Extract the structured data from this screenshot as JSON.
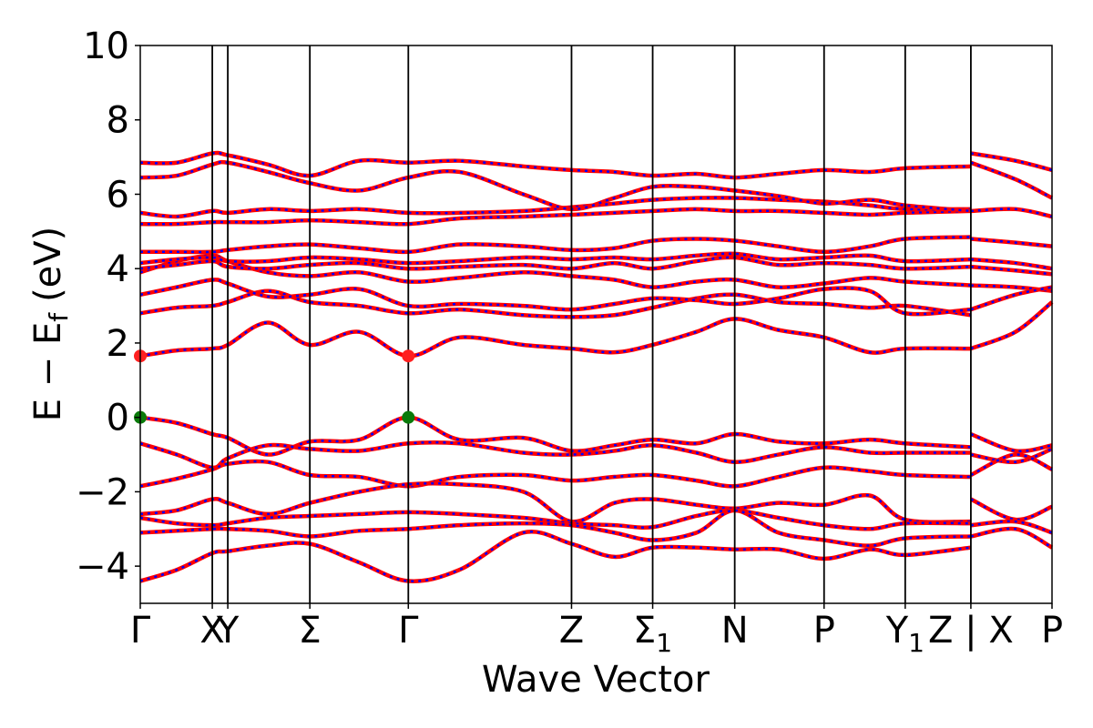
{
  "chart_data": {
    "type": "line",
    "xlabel": "Wave Vector",
    "ylabel": "E − E",
    "ylabel_sub": "f",
    "ylabel_units": "(eV)",
    "ylim": [
      -5,
      10
    ],
    "yticks": [
      {
        "value": -4,
        "label": "−4"
      },
      {
        "value": -2,
        "label": "−2"
      },
      {
        "value": 0,
        "label": "0"
      },
      {
        "value": 2,
        "label": "2"
      },
      {
        "value": 4,
        "label": "4"
      },
      {
        "value": 6,
        "label": "6"
      },
      {
        "value": 8,
        "label": "8"
      },
      {
        "value": 10,
        "label": "10"
      }
    ],
    "xlim": [
      0,
      1000
    ],
    "high_symmetry_points": [
      {
        "k": 0,
        "label": "Γ",
        "sub": ""
      },
      {
        "k": 79,
        "label": "X",
        "sub": ""
      },
      {
        "k": 96,
        "label": "Y",
        "sub": ""
      },
      {
        "k": 186,
        "label": "Σ",
        "sub": ""
      },
      {
        "k": 294,
        "label": "Γ",
        "sub": ""
      },
      {
        "k": 473,
        "label": "Z",
        "sub": ""
      },
      {
        "k": 562,
        "label": "Σ",
        "sub": "1"
      },
      {
        "k": 652,
        "label": "N",
        "sub": ""
      },
      {
        "k": 750,
        "label": "P",
        "sub": ""
      },
      {
        "k": 839,
        "label": "Y",
        "sub": "1"
      },
      {
        "k": 911,
        "label": "Z | X",
        "sub": ""
      },
      {
        "k": 1000,
        "label": "P",
        "sub": ""
      }
    ],
    "band_styles": {
      "solid_color": "#ff0000",
      "dash_color": "#0000ff"
    },
    "markers": [
      {
        "k": 0,
        "e": 1.65,
        "color": "#ff2020"
      },
      {
        "k": 294,
        "e": 1.65,
        "color": "#ff2020"
      },
      {
        "k": 0,
        "e": 0.0,
        "color": "#0a7a0a"
      },
      {
        "k": 294,
        "e": 0.0,
        "color": "#0a7a0a"
      }
    ],
    "series": [
      {
        "k": [
          0,
          40,
          79,
          96,
          140,
          186,
          240,
          294,
          350,
          420,
          473,
          520,
          562,
          610,
          652,
          700,
          750,
          800,
          839,
          911
        ],
        "e": [
          1.65,
          1.8,
          1.85,
          1.95,
          2.55,
          1.95,
          2.3,
          1.65,
          2.15,
          1.95,
          1.85,
          1.75,
          1.95,
          2.3,
          2.65,
          2.35,
          2.15,
          1.75,
          1.85,
          1.85
        ]
      },
      {
        "k": [
          911,
          960,
          1000
        ],
        "e": [
          1.85,
          2.3,
          3.1
        ]
      },
      {
        "k": [
          0,
          40,
          79,
          96,
          140,
          186,
          240,
          294,
          350,
          420,
          473,
          520,
          562,
          610,
          652,
          700,
          750,
          800,
          839,
          911
        ],
        "e": [
          2.8,
          2.95,
          3.0,
          3.1,
          3.4,
          3.1,
          3.0,
          2.8,
          2.9,
          2.75,
          2.7,
          2.75,
          2.95,
          3.2,
          3.3,
          3.1,
          3.05,
          2.95,
          3.0,
          2.75
        ]
      },
      {
        "k": [
          0,
          40,
          79,
          96,
          140,
          186,
          240,
          294,
          350,
          420,
          473,
          520,
          562,
          610,
          652,
          700,
          750,
          800,
          839,
          911
        ],
        "e": [
          3.3,
          3.5,
          3.7,
          3.6,
          3.25,
          3.3,
          3.45,
          3.0,
          3.05,
          3.0,
          2.9,
          3.05,
          3.2,
          3.15,
          3.05,
          3.2,
          3.45,
          3.4,
          2.8,
          2.9
        ]
      },
      {
        "k": [
          0,
          40,
          79,
          96,
          140,
          186,
          240,
          294,
          350,
          420,
          473,
          520,
          562,
          610,
          652,
          700,
          750,
          800,
          839,
          911
        ],
        "e": [
          3.9,
          4.2,
          4.35,
          4.2,
          3.9,
          3.8,
          3.9,
          3.65,
          3.75,
          3.9,
          3.8,
          3.7,
          3.5,
          3.65,
          3.7,
          3.5,
          3.6,
          3.75,
          3.65,
          3.55
        ]
      },
      {
        "k": [
          0,
          40,
          79,
          96,
          140,
          186,
          240,
          294,
          350,
          420,
          473,
          520,
          562,
          610,
          652,
          700,
          750,
          800,
          839,
          911
        ],
        "e": [
          4.0,
          4.1,
          4.2,
          4.05,
          4.0,
          4.1,
          4.15,
          4.0,
          4.05,
          4.1,
          4.0,
          4.15,
          4.0,
          4.2,
          4.3,
          4.1,
          4.15,
          4.1,
          4.0,
          4.05
        ]
      },
      {
        "k": [
          0,
          40,
          79,
          96,
          140,
          186,
          240,
          294,
          350,
          420,
          473,
          520,
          562,
          610,
          652,
          700,
          750,
          800,
          839,
          911
        ],
        "e": [
          4.15,
          4.25,
          4.3,
          4.2,
          4.2,
          4.3,
          4.25,
          4.15,
          4.2,
          4.3,
          4.25,
          4.3,
          4.25,
          4.35,
          4.4,
          4.25,
          4.3,
          4.35,
          4.2,
          4.25
        ]
      },
      {
        "k": [
          0,
          40,
          79,
          96,
          140,
          186,
          240,
          294,
          350,
          420,
          473,
          520,
          562,
          610,
          652,
          700,
          750,
          800,
          839,
          911
        ],
        "e": [
          4.45,
          4.45,
          4.45,
          4.5,
          4.6,
          4.65,
          4.55,
          4.45,
          4.65,
          4.6,
          4.5,
          4.55,
          4.75,
          4.8,
          4.75,
          4.6,
          4.45,
          4.6,
          4.8,
          4.85
        ]
      },
      {
        "k": [
          0,
          40,
          79,
          96,
          140,
          186,
          240,
          294,
          350,
          420,
          473,
          520,
          562,
          610,
          652,
          700,
          750,
          800,
          839,
          911
        ],
        "e": [
          5.2,
          5.2,
          5.25,
          5.25,
          5.25,
          5.3,
          5.25,
          5.2,
          5.35,
          5.4,
          5.45,
          5.5,
          5.55,
          5.6,
          5.55,
          5.55,
          5.5,
          5.45,
          5.5,
          5.55
        ]
      },
      {
        "k": [
          0,
          40,
          79,
          96,
          140,
          186,
          240,
          294,
          350,
          420,
          473,
          520,
          562,
          610,
          652,
          700,
          750,
          800,
          839,
          911
        ],
        "e": [
          5.5,
          5.4,
          5.55,
          5.5,
          5.6,
          5.55,
          5.6,
          5.5,
          5.5,
          5.55,
          5.65,
          5.75,
          5.85,
          5.9,
          5.9,
          5.85,
          5.8,
          5.7,
          5.6,
          5.6
        ]
      },
      {
        "k": [
          0,
          40,
          79,
          96,
          140,
          186,
          240,
          294,
          350,
          420,
          473,
          520,
          562,
          610,
          652,
          700,
          750,
          800,
          839,
          911
        ],
        "e": [
          6.45,
          6.5,
          6.8,
          6.85,
          6.6,
          6.3,
          6.1,
          6.45,
          6.6,
          6.0,
          5.6,
          5.9,
          6.2,
          6.2,
          6.1,
          5.95,
          5.75,
          5.85,
          5.7,
          5.55
        ]
      },
      {
        "k": [
          0,
          40,
          79,
          96,
          140,
          186,
          240,
          294,
          350,
          420,
          473,
          520,
          562,
          610,
          652,
          700,
          750,
          800,
          839,
          911
        ],
        "e": [
          6.85,
          6.85,
          7.1,
          7.05,
          6.8,
          6.5,
          6.9,
          6.85,
          6.9,
          6.75,
          6.65,
          6.6,
          6.5,
          6.55,
          6.45,
          6.55,
          6.65,
          6.6,
          6.7,
          6.75
        ]
      },
      {
        "k": [
          911,
          960,
          1000
        ],
        "e": [
          7.1,
          6.9,
          6.65
        ]
      },
      {
        "k": [
          911,
          960,
          1000
        ],
        "e": [
          6.85,
          6.4,
          5.9
        ]
      },
      {
        "k": [
          911,
          960,
          1000
        ],
        "e": [
          5.55,
          5.6,
          5.4
        ]
      },
      {
        "k": [
          911,
          960,
          1000
        ],
        "e": [
          4.8,
          4.7,
          4.6
        ]
      },
      {
        "k": [
          911,
          960,
          1000
        ],
        "e": [
          4.25,
          4.15,
          4.0
        ]
      },
      {
        "k": [
          911,
          960,
          1000
        ],
        "e": [
          4.05,
          3.95,
          3.85
        ]
      },
      {
        "k": [
          911,
          960,
          1000
        ],
        "e": [
          3.55,
          3.5,
          3.4
        ]
      },
      {
        "k": [
          911,
          960,
          1000
        ],
        "e": [
          2.9,
          3.3,
          3.5
        ]
      },
      {
        "k": [
          0,
          40,
          79,
          96,
          140,
          186,
          240,
          294,
          350,
          420,
          473,
          520,
          562,
          610,
          652,
          700,
          750,
          800,
          839,
          911
        ],
        "e": [
          0.0,
          -0.15,
          -0.45,
          -0.55,
          -1.0,
          -0.65,
          -0.6,
          0.0,
          -0.6,
          -0.55,
          -0.9,
          -0.75,
          -0.6,
          -0.7,
          -0.45,
          -0.65,
          -0.7,
          -0.6,
          -0.7,
          -0.8
        ]
      },
      {
        "k": [
          0,
          40,
          79,
          96,
          140,
          186,
          240,
          294,
          350,
          420,
          473,
          520,
          562,
          610,
          652,
          700,
          750,
          800,
          839,
          911
        ],
        "e": [
          -0.7,
          -1.0,
          -1.35,
          -1.1,
          -0.75,
          -0.85,
          -0.9,
          -0.7,
          -0.7,
          -0.95,
          -1.0,
          -0.9,
          -0.75,
          -0.95,
          -1.2,
          -1.0,
          -0.8,
          -0.95,
          -0.95,
          -0.95
        ]
      },
      {
        "k": [
          0,
          40,
          79,
          96,
          140,
          186,
          240,
          294,
          350,
          420,
          473,
          520,
          562,
          610,
          652,
          700,
          750,
          800,
          839,
          911
        ],
        "e": [
          -1.85,
          -1.65,
          -1.4,
          -1.25,
          -1.2,
          -1.55,
          -1.6,
          -1.85,
          -1.6,
          -1.55,
          -1.7,
          -1.6,
          -1.55,
          -1.7,
          -1.85,
          -1.6,
          -1.35,
          -1.45,
          -1.55,
          -1.6
        ]
      },
      {
        "k": [
          0,
          40,
          79,
          96,
          140,
          186,
          240,
          294,
          350,
          420,
          473,
          520,
          562,
          610,
          652,
          700,
          750,
          800,
          839,
          911
        ],
        "e": [
          -2.6,
          -2.5,
          -2.2,
          -2.3,
          -2.6,
          -2.3,
          -2.0,
          -1.8,
          -1.8,
          -2.0,
          -2.8,
          -2.3,
          -2.2,
          -2.35,
          -2.45,
          -2.3,
          -2.35,
          -2.1,
          -2.75,
          -2.8
        ]
      },
      {
        "k": [
          0,
          40,
          79,
          96,
          140,
          186,
          240,
          294,
          350,
          420,
          473,
          520,
          562,
          610,
          652,
          700,
          750,
          800,
          839,
          911
        ],
        "e": [
          -2.7,
          -2.85,
          -2.9,
          -2.85,
          -2.7,
          -2.65,
          -2.6,
          -2.55,
          -2.6,
          -2.7,
          -2.85,
          -2.9,
          -2.95,
          -2.65,
          -2.5,
          -2.7,
          -2.9,
          -3.0,
          -2.85,
          -2.85
        ]
      },
      {
        "k": [
          0,
          40,
          79,
          96,
          140,
          186,
          240,
          294,
          350,
          420,
          473,
          520,
          562,
          610,
          652,
          700,
          750,
          800,
          839,
          911
        ],
        "e": [
          -3.1,
          -3.05,
          -3.0,
          -3.0,
          -3.05,
          -3.2,
          -3.05,
          -3.0,
          -2.9,
          -2.85,
          -2.9,
          -3.1,
          -3.3,
          -3.1,
          -2.5,
          -3.1,
          -3.3,
          -3.45,
          -3.25,
          -3.2
        ]
      },
      {
        "k": [
          0,
          40,
          79,
          96,
          140,
          186,
          240,
          294,
          350,
          420,
          473,
          520,
          562,
          610,
          652,
          700,
          750,
          800,
          839,
          911
        ],
        "e": [
          -4.4,
          -4.1,
          -3.65,
          -3.6,
          -3.45,
          -3.4,
          -3.9,
          -4.4,
          -4.1,
          -3.1,
          -3.4,
          -3.75,
          -3.5,
          -3.5,
          -3.55,
          -3.55,
          -3.8,
          -3.55,
          -3.7,
          -3.5
        ]
      },
      {
        "k": [
          911,
          960,
          1000
        ],
        "e": [
          -0.45,
          -0.9,
          -0.75
        ]
      },
      {
        "k": [
          911,
          960,
          1000
        ],
        "e": [
          -1.0,
          -1.2,
          -0.85
        ]
      },
      {
        "k": [
          911,
          960,
          1000
        ],
        "e": [
          -1.55,
          -1.0,
          -1.4
        ]
      },
      {
        "k": [
          911,
          960,
          1000
        ],
        "e": [
          -2.2,
          -2.75,
          -2.4
        ]
      },
      {
        "k": [
          911,
          960,
          1000
        ],
        "e": [
          -2.9,
          -2.8,
          -3.1
        ]
      },
      {
        "k": [
          911,
          960,
          1000
        ],
        "e": [
          -3.2,
          -3.0,
          -3.5
        ]
      }
    ]
  }
}
